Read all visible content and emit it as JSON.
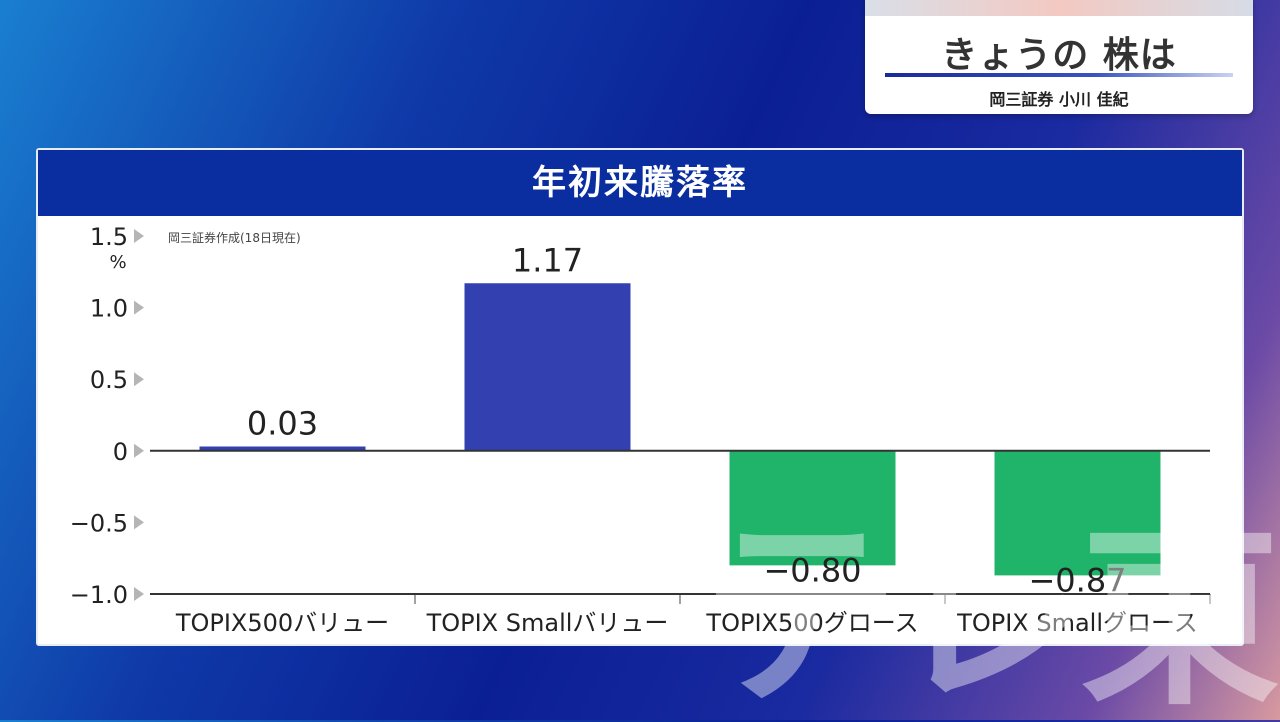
{
  "badge": {
    "title": "きょうの 株は",
    "subtitle": "岡三証券 小川 佳紀"
  },
  "panel": {
    "title": "年初来騰落率"
  },
  "chart_data": {
    "type": "bar",
    "title": "年初来騰落率",
    "source_note": "岡三証券作成(18日現在)",
    "ylabel": "%",
    "ylim": [
      -1.0,
      1.5
    ],
    "yticks": [
      1.5,
      1.0,
      0.5,
      0,
      -0.5,
      -1.0
    ],
    "ytick_labels": [
      "1.5",
      "1.0",
      "0.5",
      "0",
      "−0.5",
      "−1.0"
    ],
    "categories": [
      "TOPIX500バリュー",
      "TOPIX Smallバリュー",
      "TOPIX500グロース",
      "TOPIX Smallグロース"
    ],
    "values": [
      0.03,
      1.17,
      -0.8,
      -0.87
    ],
    "value_labels": [
      "0.03",
      "1.17",
      "−0.80",
      "−0.87"
    ],
    "colors": {
      "positive": "#3340b0",
      "negative": "#20b46a",
      "header": "#0a2ea0"
    },
    "grid": false
  },
  "watermark": {
    "text": "テレ東"
  }
}
